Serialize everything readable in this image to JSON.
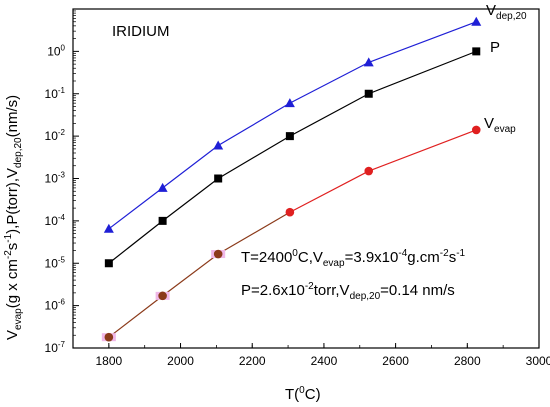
{
  "chart_data": {
    "type": "line",
    "title": "IRIDIUM",
    "xlabel": {
      "base": "T(",
      "sup": "0",
      "tail": "C)"
    },
    "ylabel": {
      "t1": "V",
      "s1": "evap",
      "t2": "(g x cm",
      "s2": "-2",
      "t3": "s",
      "s3": "-1",
      "t4": "),P(torr),V",
      "s4": "dep,20",
      "t5": "(nm/s)"
    },
    "xlim": [
      1700,
      3000
    ],
    "ylim": [
      1e-07,
      10.0
    ],
    "yscale": "log",
    "x_ticks": [
      "1800",
      "2000",
      "2200",
      "2400",
      "2600",
      "2800",
      "3000"
    ],
    "y_ticks": [
      {
        "base": "10",
        "exp": "-7"
      },
      {
        "base": "10",
        "exp": "-6"
      },
      {
        "base": "10",
        "exp": "-5"
      },
      {
        "base": "10",
        "exp": "-4"
      },
      {
        "base": "10",
        "exp": "-3"
      },
      {
        "base": "10",
        "exp": "-2"
      },
      {
        "base": "10",
        "exp": "-1"
      },
      {
        "base": "10",
        "exp": "0"
      }
    ],
    "series": [
      {
        "name_main": "V",
        "name_sub": "dep,20",
        "marker": "triangle",
        "color": "#1f1fd6",
        "x": [
          1800,
          1950,
          2105,
          2305,
          2525,
          2825
        ],
        "y": [
          6.5e-05,
          0.0006,
          0.006,
          0.06,
          0.55,
          5.0
        ]
      },
      {
        "name_main": "P",
        "name_sub": "",
        "marker": "square",
        "color": "#000000",
        "x": [
          1800,
          1950,
          2105,
          2305,
          2525,
          2825
        ],
        "y": [
          1e-05,
          0.0001,
          0.001,
          0.01,
          0.1,
          1.0
        ]
      },
      {
        "name_main": "V",
        "name_sub": "evap",
        "marker": "circle",
        "color": "#e02020",
        "x": [
          1800,
          1950,
          2105,
          2305,
          2525,
          2825
        ],
        "y": [
          1.8e-07,
          1.7e-06,
          1.65e-05,
          0.00016,
          0.0015,
          0.014
        ]
      }
    ],
    "annotations": {
      "line1": {
        "a": "T=2400",
        "b": "0",
        "c": "C,V",
        "d": "evap",
        "e": "=3.9x10",
        "f": "-4",
        "g": "g.cm",
        "h": "-2",
        "i": "s",
        "j": "-1"
      },
      "line2": {
        "a": "P=2.6x10",
        "b": "-2",
        "c": "torr,V",
        "d": "dep,20",
        "e": "=0.14 nm/s"
      }
    },
    "grid": false,
    "legend": "none"
  }
}
